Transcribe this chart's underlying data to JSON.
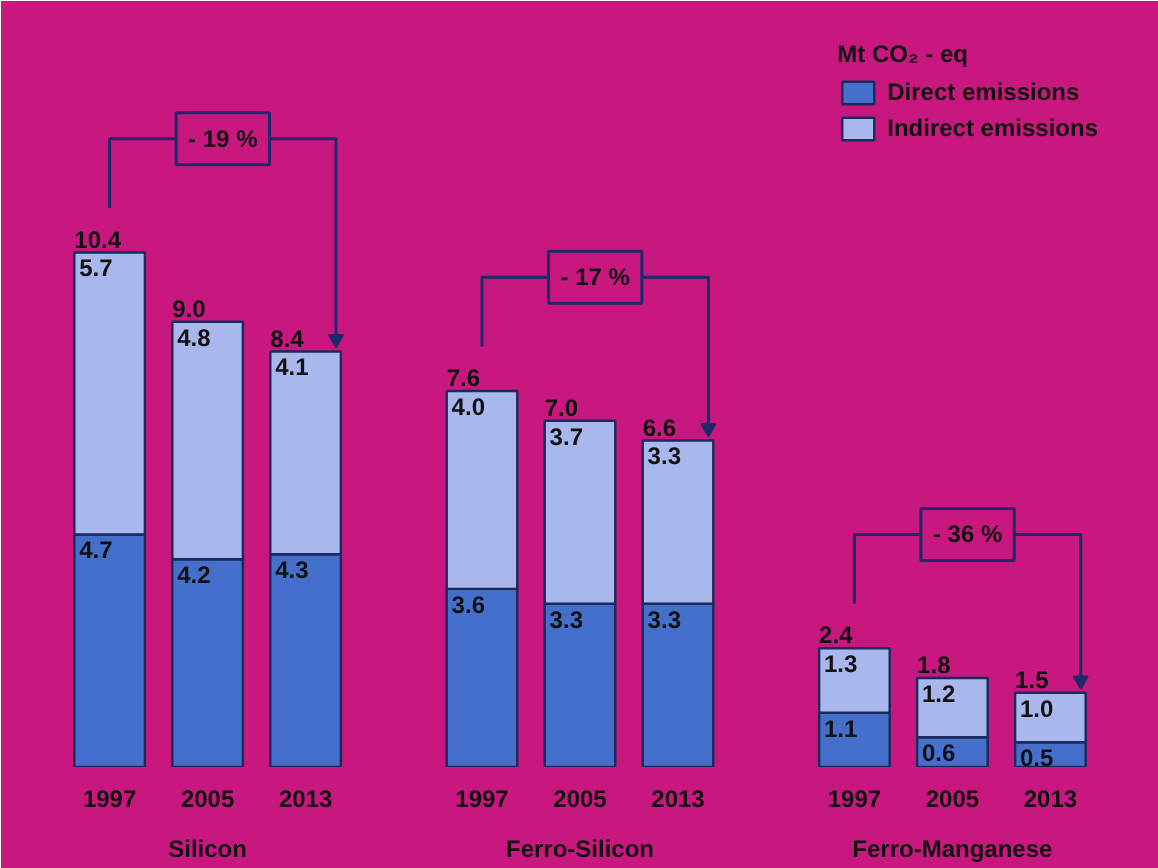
{
  "chart_data": {
    "type": "bar",
    "stacked": true,
    "legend_title": "Mt CO₂ - eq",
    "legend": "top right",
    "tick_labels": "x",
    "categories": [
      "1997",
      "2005",
      "2013",
      "1997",
      "2005",
      "2013",
      "1997",
      "2005",
      "2013"
    ],
    "series": [
      {
        "name": "Direct emissions",
        "color": "#4470cc",
        "values": [
          4.7,
          4.2,
          4.3,
          3.6,
          3.3,
          3.3,
          1.1,
          0.6,
          0.5
        ],
        "value_labels": [
          "4.7",
          "4.2",
          "4.3",
          "3.6",
          "3.3",
          "3.3",
          "1.1",
          "0.6",
          "0.5"
        ]
      },
      {
        "name": "Indirect emissions",
        "color": "#a8b8ec",
        "values": [
          5.7,
          4.8,
          4.1,
          4.0,
          3.7,
          3.3,
          1.3,
          1.2,
          1.0
        ],
        "value_labels": [
          "5.7",
          "4.8",
          "4.1",
          "4.0",
          "3.7",
          "3.3",
          "1.3",
          "1.2",
          "1.0"
        ]
      }
    ],
    "totals": [
      "10.4",
      "9.0",
      "8.4",
      "7.6",
      "7.0",
      "6.6",
      "2.4",
      "1.8",
      "1.5"
    ],
    "annotations": [
      "Silicon",
      "Ferro-Silicon",
      "Ferro-Manganese",
      "- 19 %",
      "- 17 %",
      "- 36 %"
    ]
  }
}
